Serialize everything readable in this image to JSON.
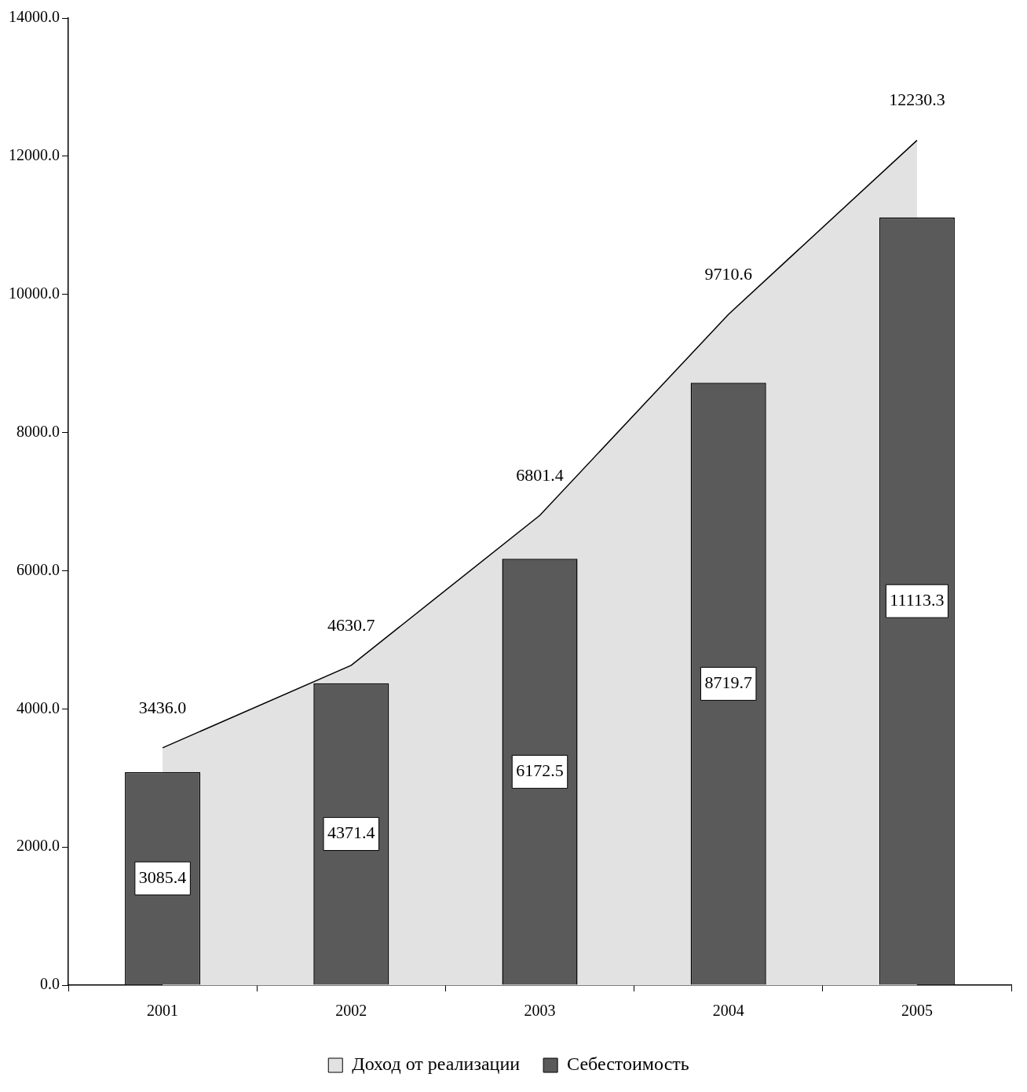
{
  "chart_data": {
    "type": "bar",
    "categories": [
      "2001",
      "2002",
      "2003",
      "2004",
      "2005"
    ],
    "series": [
      {
        "name": "Доход от реализации",
        "type": "area",
        "color": "#e2e2e2",
        "values": [
          3436,
          4630.7,
          6801.4,
          9710.6,
          12230.3
        ],
        "value_labels": [
          "3436.0",
          "4630.7",
          "6801.4",
          "9710.6",
          "12230.3"
        ]
      },
      {
        "name": "Себестоимость",
        "color": "#5a5a5a",
        "values": [
          3085.4,
          4371.4,
          6172.5,
          8719.7,
          11113.3
        ],
        "value_labels": [
          "3085.4",
          "4371.4",
          "6172.5",
          "8719.7",
          "11113.3"
        ]
      }
    ],
    "ylim": [
      0,
      14000
    ],
    "yticks": [
      {
        "value": 0,
        "label": "0.0"
      },
      {
        "value": 2000,
        "label": "2000.0"
      },
      {
        "value": 4000,
        "label": "4000.0"
      },
      {
        "value": 6000,
        "label": "6000.0"
      },
      {
        "value": 8000,
        "label": "8000.0"
      },
      {
        "value": 10000,
        "label": "10000.0"
      },
      {
        "value": 12000,
        "label": "12000.0"
      },
      {
        "value": 14000,
        "label": "14000.0"
      }
    ],
    "grid": false,
    "legend": "bottom"
  }
}
